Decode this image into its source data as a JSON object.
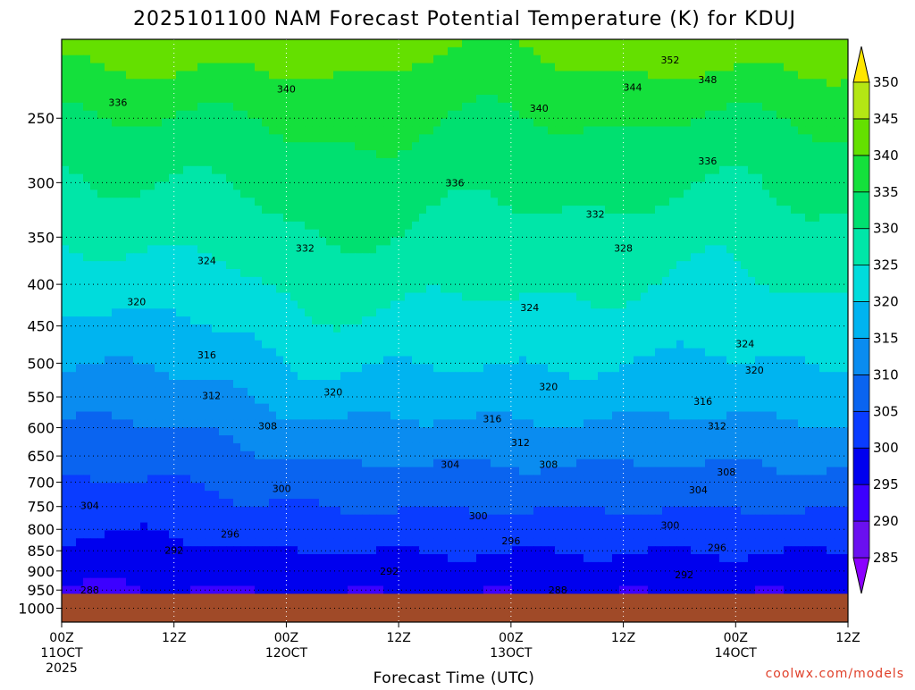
{
  "title": "2025101100 NAM Forecast Potential Temperature (K) for KDUJ",
  "credit": "coolwx.com/models",
  "chart_data": {
    "type": "heatmap",
    "title": "2025101100 NAM Forecast Potential Temperature (K) for KDUJ",
    "xlabel": "Forecast Time (UTC)",
    "ylabel": "",
    "y_log_scale": true,
    "y_inverted": true,
    "ylim": [
      1040,
      200
    ],
    "xlim_hours": [
      0,
      84
    ],
    "grid": true,
    "y_ticks": [
      250,
      300,
      350,
      400,
      450,
      500,
      550,
      600,
      650,
      700,
      750,
      800,
      850,
      900,
      950,
      1000
    ],
    "x_ticks": [
      {
        "hour": 0,
        "label": "00Z",
        "sublabel": "11OCT",
        "year": "2025"
      },
      {
        "hour": 12,
        "label": "12Z",
        "sublabel": "",
        "year": ""
      },
      {
        "hour": 24,
        "label": "00Z",
        "sublabel": "12OCT",
        "year": ""
      },
      {
        "hour": 36,
        "label": "12Z",
        "sublabel": "",
        "year": ""
      },
      {
        "hour": 48,
        "label": "00Z",
        "sublabel": "13OCT",
        "year": ""
      },
      {
        "hour": 60,
        "label": "12Z",
        "sublabel": "",
        "year": ""
      },
      {
        "hour": 72,
        "label": "00Z",
        "sublabel": "14OCT",
        "year": ""
      },
      {
        "hour": 84,
        "label": "12Z",
        "sublabel": "",
        "year": ""
      }
    ],
    "colorbar": {
      "levels": [
        285,
        290,
        295,
        300,
        305,
        310,
        315,
        320,
        325,
        330,
        335,
        340,
        345,
        350
      ],
      "colors": [
        "#8b00ff",
        "#6a10f0",
        "#3c00ff",
        "#0000ee",
        "#0a3cff",
        "#0a64f0",
        "#0a8cf0",
        "#00b4f0",
        "#00dcdc",
        "#00e6a8",
        "#00e070",
        "#14e03c",
        "#64e000",
        "#b4e614",
        "#e6e614",
        "#ffe600"
      ],
      "extend": "both"
    },
    "ground_color": "#a04a28",
    "ground_pressure": 960,
    "contour_interval": 4,
    "contour_labels": [
      {
        "value": 352,
        "hour": 65,
        "p": 212
      },
      {
        "value": 348,
        "hour": 69,
        "p": 224
      },
      {
        "value": 344,
        "hour": 61,
        "p": 229
      },
      {
        "value": 340,
        "hour": 24,
        "p": 230
      },
      {
        "value": 340,
        "hour": 51,
        "p": 243
      },
      {
        "value": 336,
        "hour": 6,
        "p": 239
      },
      {
        "value": 336,
        "hour": 42,
        "p": 300
      },
      {
        "value": 336,
        "hour": 69,
        "p": 282
      },
      {
        "value": 332,
        "hour": 26,
        "p": 361
      },
      {
        "value": 332,
        "hour": 57,
        "p": 328
      },
      {
        "value": 328,
        "hour": 60,
        "p": 361
      },
      {
        "value": 324,
        "hour": 15.5,
        "p": 374
      },
      {
        "value": 324,
        "hour": 50,
        "p": 427
      },
      {
        "value": 324,
        "hour": 73,
        "p": 473
      },
      {
        "value": 320,
        "hour": 8,
        "p": 420
      },
      {
        "value": 320,
        "hour": 29,
        "p": 542
      },
      {
        "value": 320,
        "hour": 52,
        "p": 534
      },
      {
        "value": 320,
        "hour": 74,
        "p": 510
      },
      {
        "value": 316,
        "hour": 15.5,
        "p": 488
      },
      {
        "value": 316,
        "hour": 46,
        "p": 585
      },
      {
        "value": 316,
        "hour": 68.5,
        "p": 557
      },
      {
        "value": 312,
        "hour": 16,
        "p": 548
      },
      {
        "value": 312,
        "hour": 49,
        "p": 626
      },
      {
        "value": 312,
        "hour": 70,
        "p": 597
      },
      {
        "value": 308,
        "hour": 22,
        "p": 597
      },
      {
        "value": 308,
        "hour": 52,
        "p": 666
      },
      {
        "value": 308,
        "hour": 71,
        "p": 680
      },
      {
        "value": 304,
        "hour": 3,
        "p": 748
      },
      {
        "value": 304,
        "hour": 41.5,
        "p": 666
      },
      {
        "value": 304,
        "hour": 68,
        "p": 715
      },
      {
        "value": 300,
        "hour": 23.5,
        "p": 713
      },
      {
        "value": 300,
        "hour": 44.5,
        "p": 770
      },
      {
        "value": 300,
        "hour": 65,
        "p": 790
      },
      {
        "value": 296,
        "hour": 18,
        "p": 811
      },
      {
        "value": 296,
        "hour": 48,
        "p": 826
      },
      {
        "value": 296,
        "hour": 70,
        "p": 842
      },
      {
        "value": 292,
        "hour": 12,
        "p": 848
      },
      {
        "value": 292,
        "hour": 35,
        "p": 900
      },
      {
        "value": 292,
        "hour": 66.5,
        "p": 910
      },
      {
        "value": 288,
        "hour": 3,
        "p": 949
      },
      {
        "value": 288,
        "hour": 53,
        "p": 949
      }
    ]
  }
}
